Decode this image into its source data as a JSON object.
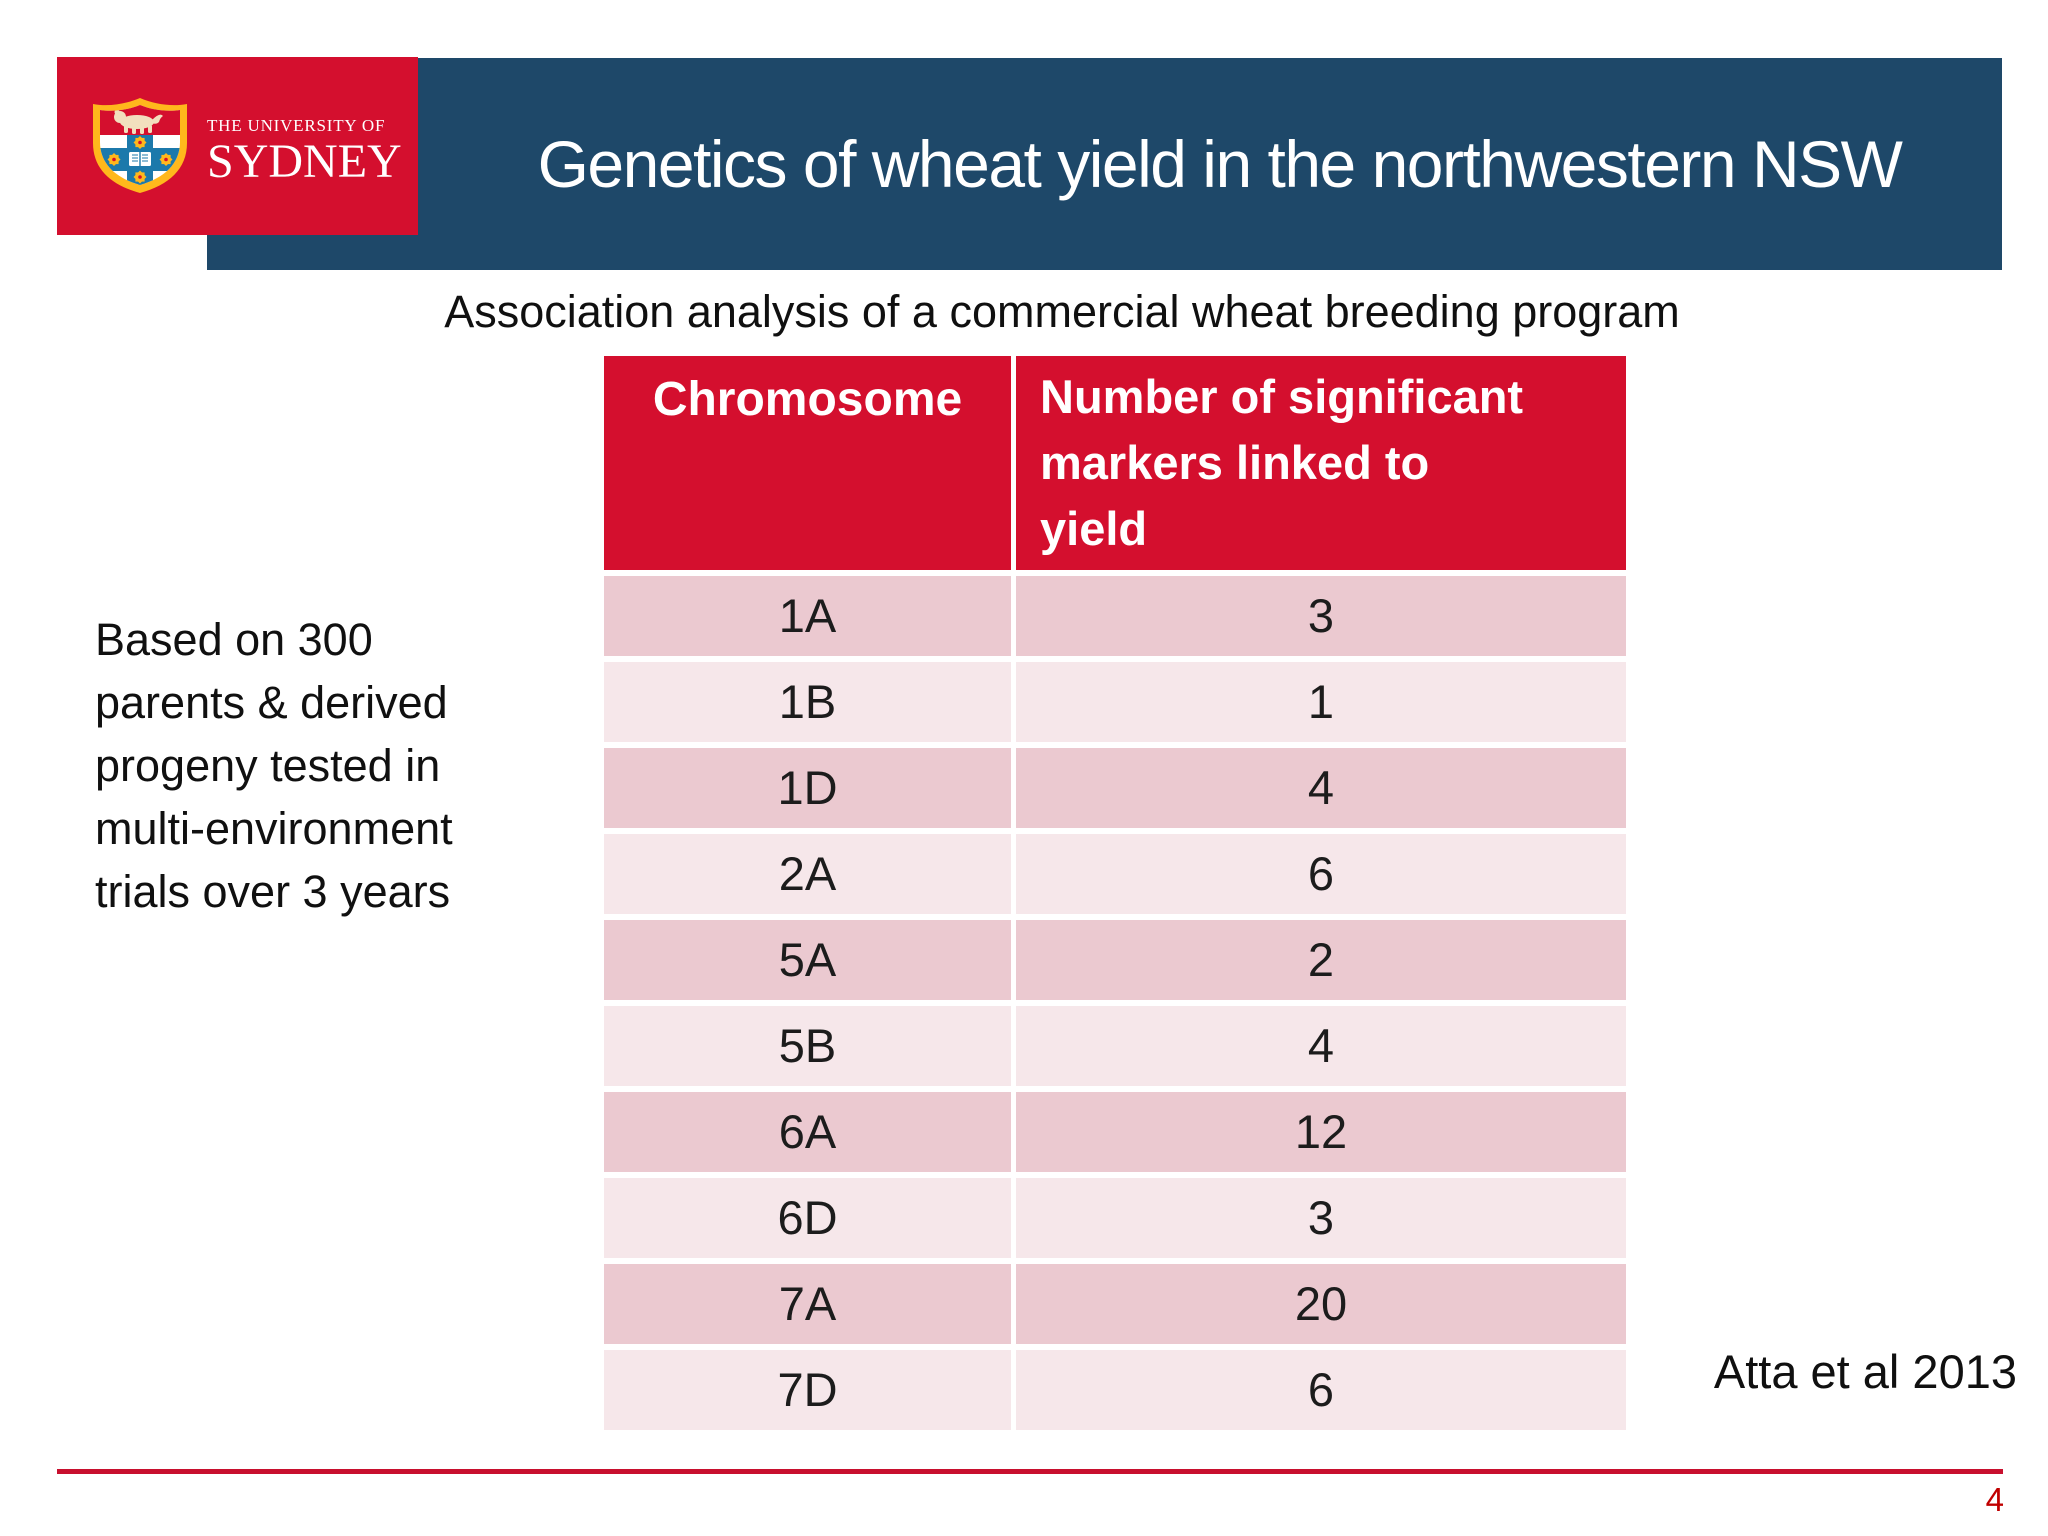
{
  "colors": {
    "brand_red": "#D40F2E",
    "title_blue": "#1E4869",
    "row_dark": "#EBC9D0",
    "row_light": "#F6E7EA",
    "rule_red": "#C8102E",
    "page_red": "#C00000",
    "gold": "#FFB81C",
    "cross_blue": "#1C79AB",
    "lion_cream": "#F2DFBE"
  },
  "logo": {
    "crest_icon": "sydney-university-crest",
    "small_text": "THE UNIVERSITY OF",
    "large_text": "SYDNEY"
  },
  "header": {
    "title": "Genetics of wheat yield in the northwestern NSW"
  },
  "subtitle": "Association analysis of a commercial wheat breeding program",
  "sidenote": "Based on 300\nparents & derived\nprogeny tested in\nmulti-environment\ntrials over 3 years",
  "table": {
    "col1_header": "Chromosome",
    "col2_header": "Number of significant\nmarkers linked to\nyield",
    "rows": [
      [
        "1A",
        "3"
      ],
      [
        "1B",
        "1"
      ],
      [
        "1D",
        "4"
      ],
      [
        "2A",
        "6"
      ],
      [
        "5A",
        "2"
      ],
      [
        "5B",
        "4"
      ],
      [
        "6A",
        "12"
      ],
      [
        "6D",
        "3"
      ],
      [
        "7A",
        "20"
      ],
      [
        "7D",
        "6"
      ]
    ]
  },
  "chart_data": {
    "type": "table",
    "title": "Association analysis of a commercial wheat breeding program",
    "columns": [
      "Chromosome",
      "Number of significant markers linked to yield"
    ],
    "categories": [
      "1A",
      "1B",
      "1D",
      "2A",
      "5A",
      "5B",
      "6A",
      "6D",
      "7A",
      "7D"
    ],
    "values": [
      3,
      1,
      4,
      6,
      2,
      4,
      12,
      3,
      20,
      6
    ]
  },
  "attribution": "Atta et al 2013",
  "page_number": "4"
}
